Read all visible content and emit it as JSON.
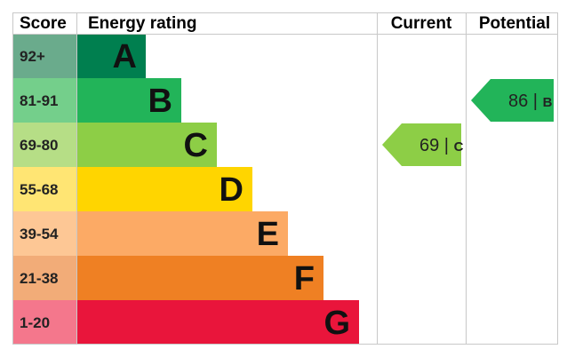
{
  "chart_data": {
    "type": "table",
    "headers": {
      "score": "Score",
      "rating": "Energy rating",
      "current": "Current",
      "potential": "Potential"
    },
    "bands": [
      {
        "score": "92+",
        "letter": "A",
        "score_color": "#6aab8c",
        "bar_color": "#007f4f"
      },
      {
        "score": "81-91",
        "letter": "B",
        "score_color": "#74cf8b",
        "bar_color": "#22b459"
      },
      {
        "score": "69-80",
        "letter": "C",
        "score_color": "#b6de86",
        "bar_color": "#8dce46"
      },
      {
        "score": "55-68",
        "letter": "D",
        "score_color": "#ffe573",
        "bar_color": "#ffd500"
      },
      {
        "score": "39-54",
        "letter": "E",
        "score_color": "#fdc795",
        "bar_color": "#fcaa65"
      },
      {
        "score": "21-38",
        "letter": "F",
        "score_color": "#f2ac78",
        "bar_color": "#ef8023"
      },
      {
        "score": "1-20",
        "letter": "G",
        "score_color": "#f4778c",
        "bar_color": "#e9153b"
      }
    ],
    "current": {
      "value": 69,
      "rating": "C",
      "color": "#8dce46"
    },
    "potential": {
      "value": 86,
      "rating": "B",
      "color": "#22b459"
    }
  }
}
